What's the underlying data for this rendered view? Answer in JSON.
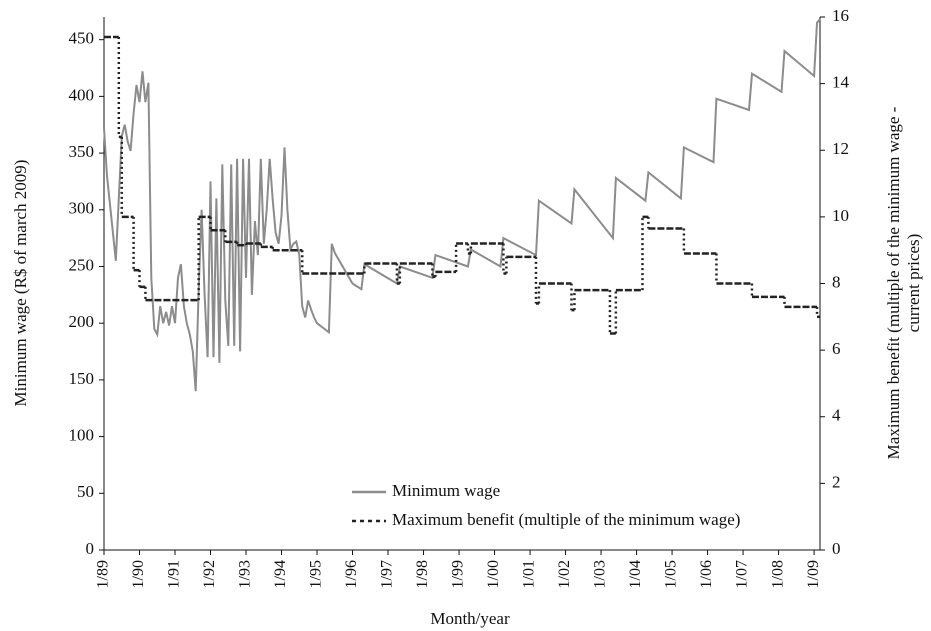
{
  "chart_data": {
    "type": "line",
    "xlabel": "Month/year",
    "ylabel": "Minimum wage (R$ of march 2009)",
    "y2label": [
      "Maximum benefit (multiple of the minimum wage -",
      "current prices)"
    ],
    "xlim": [
      "1/89",
      "3/09"
    ],
    "xticks": [
      "1/89",
      "1/90",
      "1/91",
      "1/92",
      "1/93",
      "1/94",
      "1/95",
      "1/96",
      "1/97",
      "1/98",
      "1/99",
      "1/00",
      "1/01",
      "1/02",
      "1/03",
      "1/04",
      "1/05",
      "1/06",
      "1/07",
      "1/08",
      "1/09"
    ],
    "ylim": [
      0,
      470
    ],
    "yticks": [
      0,
      50,
      100,
      150,
      200,
      250,
      300,
      350,
      400,
      450
    ],
    "y2lim": [
      0,
      16
    ],
    "y2ticks": [
      0,
      2,
      4,
      6,
      8,
      10,
      12,
      14,
      16
    ],
    "grid": false,
    "series": [
      {
        "name": "Minimum wage",
        "color": "#8c8c8c",
        "style": "solid",
        "x": [
          "1/89",
          "2/89",
          "4/89",
          "5/89",
          "7/89",
          "8/89",
          "9/89",
          "10/89",
          "11/89",
          "12/89",
          "1/90",
          "2/90",
          "3/90",
          "4/90",
          "5/90",
          "6/90",
          "7/90",
          "8/90",
          "9/90",
          "10/90",
          "11/90",
          "12/90",
          "1/91",
          "2/91",
          "3/91",
          "4/91",
          "5/91",
          "6/91",
          "7/91",
          "8/91",
          "9/91",
          "10/91",
          "11/91",
          "12/91",
          "1/92",
          "2/92",
          "3/92",
          "4/92",
          "5/92",
          "6/92",
          "7/92",
          "8/92",
          "9/92",
          "10/92",
          "11/92",
          "12/92",
          "1/93",
          "2/93",
          "3/93",
          "4/93",
          "5/93",
          "6/93",
          "7/93",
          "8/93",
          "9/93",
          "10/93",
          "11/93",
          "12/93",
          "1/94",
          "2/94",
          "3/94",
          "4/94",
          "5/94",
          "6/94",
          "7/94",
          "8/94",
          "9/94",
          "10/94",
          "11/94",
          "12/94",
          "1/95",
          "5/95",
          "6/95",
          "7/95",
          "1/96",
          "4/96",
          "5/96",
          "4/97",
          "5/97",
          "4/98",
          "5/98",
          "4/99",
          "5/99",
          "3/00",
          "4/00",
          "3/01",
          "4/01",
          "3/02",
          "4/02",
          "5/03",
          "6/03",
          "4/04",
          "5/04",
          "4/05",
          "5/05",
          "3/06",
          "4/06",
          "3/07",
          "4/07",
          "2/08",
          "3/08",
          "1/09",
          "2/09",
          "3/09"
        ],
        "values": [
          372,
          330,
          280,
          255,
          365,
          375,
          360,
          352,
          385,
          410,
          395,
          422,
          395,
          412,
          240,
          195,
          190,
          215,
          200,
          210,
          198,
          215,
          200,
          240,
          252,
          215,
          200,
          190,
          175,
          140,
          230,
          300,
          225,
          170,
          325,
          170,
          310,
          165,
          340,
          220,
          180,
          340,
          180,
          345,
          175,
          345,
          240,
          345,
          225,
          290,
          260,
          345,
          270,
          300,
          345,
          310,
          280,
          270,
          295,
          355,
          300,
          265,
          270,
          272,
          260,
          215,
          205,
          220,
          212,
          205,
          200,
          192,
          270,
          262,
          235,
          230,
          252,
          235,
          250,
          240,
          260,
          250,
          265,
          250,
          275,
          260,
          308,
          288,
          318,
          275,
          328,
          308,
          333,
          310,
          355,
          342,
          398,
          388,
          420,
          404,
          440,
          418,
          465,
          468
        ]
      },
      {
        "name": "Maximum benefit (multiple of the minimum wage)",
        "color": "#222222",
        "style": "dashed",
        "axis": "y2",
        "x": [
          "1/89",
          "6/89",
          "7/89",
          "11/89",
          "1/90",
          "3/90",
          "9/91",
          "1/92",
          "6/92",
          "10/92",
          "1/93",
          "6/93",
          "10/93",
          "8/94",
          "5/96",
          "4/97",
          "5/97",
          "4/98",
          "5/98",
          "12/98",
          "4/99",
          "5/99",
          "4/00",
          "5/00",
          "3/01",
          "4/01",
          "3/02",
          "4/02",
          "4/03",
          "6/03",
          "3/04",
          "5/04",
          "5/05",
          "4/06",
          "4/07",
          "3/08",
          "2/09"
        ],
        "values": [
          15.4,
          12.4,
          10.0,
          8.4,
          7.9,
          7.5,
          10.0,
          9.6,
          9.25,
          9.15,
          9.2,
          9.1,
          9.0,
          8.3,
          8.6,
          8.0,
          8.6,
          8.2,
          8.35,
          9.2,
          8.9,
          9.2,
          8.3,
          8.8,
          7.4,
          8.0,
          7.2,
          7.8,
          6.5,
          7.8,
          10.0,
          9.65,
          8.9,
          8.0,
          7.6,
          7.3,
          7.0
        ]
      }
    ],
    "legend": "lower-center"
  }
}
